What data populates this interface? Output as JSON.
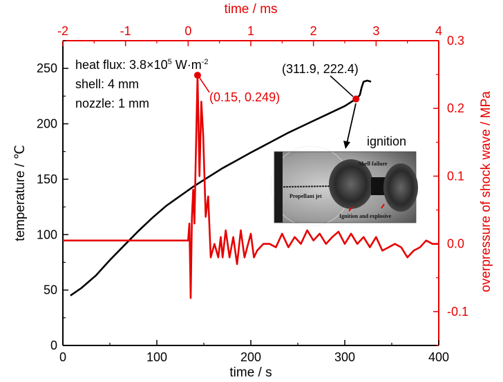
{
  "chart_data": {
    "type": "line",
    "colors": {
      "temperature": "#000000",
      "overpressure": "#e60000"
    },
    "x_bottom": {
      "label": "time / s",
      "range": [
        0,
        400
      ],
      "ticks": [
        "0",
        "100",
        "200",
        "300",
        "400"
      ]
    },
    "x_top": {
      "label": "time / ms",
      "range": [
        -2,
        4
      ],
      "ticks": [
        "-2",
        "-1",
        "0",
        "1",
        "2",
        "3",
        "4"
      ]
    },
    "y_left": {
      "label": "temperature / ℃",
      "range": [
        0,
        275
      ],
      "ticks": [
        "0",
        "50",
        "100",
        "150",
        "200",
        "250"
      ]
    },
    "y_right": {
      "label": "overpressure of shock wave / MPa",
      "range": [
        -0.15,
        0.3
      ],
      "ticks": [
        "-0.1",
        "0.0",
        "0.1",
        "0.2",
        "0.3"
      ]
    },
    "series": [
      {
        "axis": "bottom-left",
        "points": [
          [
            8,
            45
          ],
          [
            20,
            52
          ],
          [
            35,
            63
          ],
          [
            50,
            77
          ],
          [
            65,
            90
          ],
          [
            80,
            103
          ],
          [
            95,
            115
          ],
          [
            110,
            126
          ],
          [
            125,
            135
          ],
          [
            140,
            144
          ],
          [
            155,
            152
          ],
          [
            170,
            160
          ],
          [
            185,
            167
          ],
          [
            200,
            174
          ],
          [
            220,
            183
          ],
          [
            240,
            192
          ],
          [
            260,
            200
          ],
          [
            280,
            208
          ],
          [
            300,
            216
          ],
          [
            311.9,
            222.4
          ],
          [
            314,
            224
          ],
          [
            316,
            226
          ],
          [
            318,
            233
          ],
          [
            320,
            238
          ],
          [
            324,
            239
          ],
          [
            328,
            238
          ]
        ]
      },
      {
        "axis": "top-right",
        "points": [
          [
            -2,
            0.005
          ],
          [
            -0.05,
            0.005
          ],
          [
            0,
            0.005
          ],
          [
            0.02,
            0.03
          ],
          [
            0.04,
            -0.08
          ],
          [
            0.06,
            0.04
          ],
          [
            0.08,
            0.08
          ],
          [
            0.1,
            0.03
          ],
          [
            0.12,
            0.12
          ],
          [
            0.15,
            0.249
          ],
          [
            0.18,
            0.1
          ],
          [
            0.21,
            0.21
          ],
          [
            0.24,
            0.16
          ],
          [
            0.28,
            0.04
          ],
          [
            0.32,
            0.07
          ],
          [
            0.36,
            -0.02
          ],
          [
            0.42,
            0.0
          ],
          [
            0.48,
            -0.02
          ],
          [
            0.52,
            0.01
          ],
          [
            0.55,
            -0.02
          ],
          [
            0.6,
            0.02
          ],
          [
            0.66,
            -0.02
          ],
          [
            0.72,
            0.01
          ],
          [
            0.78,
            -0.03
          ],
          [
            0.84,
            0.02
          ],
          [
            0.9,
            -0.02
          ],
          [
            1.0,
            0.015
          ],
          [
            1.05,
            -0.02
          ],
          [
            1.1,
            -0.01
          ],
          [
            1.2,
            0.0
          ],
          [
            1.3,
            0.0
          ],
          [
            1.4,
            -0.005
          ],
          [
            1.5,
            0.015
          ],
          [
            1.6,
            -0.005
          ],
          [
            1.7,
            0.01
          ],
          [
            1.8,
            0.0
          ],
          [
            1.9,
            0.02
          ],
          [
            2.0,
            0.005
          ],
          [
            2.1,
            0.015
          ],
          [
            2.2,
            0.0
          ],
          [
            2.3,
            0.01
          ],
          [
            2.4,
            0.018
          ],
          [
            2.5,
            0.0
          ],
          [
            2.6,
            0.015
          ],
          [
            2.7,
            0.0
          ],
          [
            2.8,
            0.01
          ],
          [
            2.9,
            -0.005
          ],
          [
            3.0,
            0.01
          ],
          [
            3.1,
            -0.01
          ],
          [
            3.2,
            -0.005
          ],
          [
            3.3,
            0.0
          ],
          [
            3.4,
            -0.005
          ],
          [
            3.5,
            -0.02
          ],
          [
            3.6,
            -0.01
          ],
          [
            3.7,
            -0.005
          ],
          [
            3.8,
            0.005
          ],
          [
            3.9,
            0.0
          ],
          [
            4.0,
            0.0
          ]
        ]
      }
    ],
    "annotations": {
      "conditions": [
        "heat flux: 3.8×10",
        "5",
        " W·m",
        "-2",
        "shell: 4 mm",
        "nozzle: 1 mm"
      ],
      "peak_label": "(0.15, 0.249)",
      "peak_point": [
        0.15,
        0.249
      ],
      "ignition_point_label": "(311.9, 222.4)",
      "ignition_point": [
        311.9,
        222.4
      ],
      "ignition_label": "ignition",
      "inset_labels": [
        "Shell failure",
        "Propellant jet",
        "Ignition and explosive"
      ]
    }
  }
}
